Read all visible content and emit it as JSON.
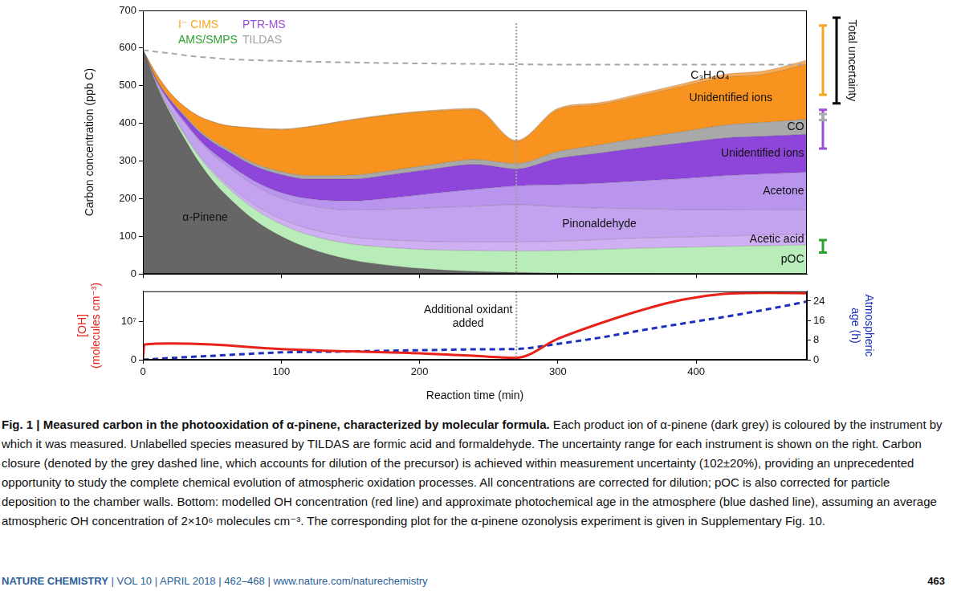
{
  "chart_data": [
    {
      "type": "area",
      "stacked": true,
      "y_label": "Carbon concentration (ppb C)",
      "x": [
        0,
        10,
        20,
        30,
        40,
        50,
        60,
        80,
        100,
        120,
        150,
        180,
        210,
        240,
        270,
        300,
        330,
        360,
        390,
        420,
        450,
        480
      ],
      "xlim": [
        0,
        480
      ],
      "xticks": [
        0,
        100,
        200,
        300,
        400
      ],
      "ylim": [
        0,
        700
      ],
      "yticks": [
        0,
        100,
        200,
        300,
        400,
        500,
        600,
        700
      ],
      "tick_labels": "y",
      "grid": false,
      "instruments": [
        {
          "name": "I⁻ CIMS",
          "color": "#f5a623"
        },
        {
          "name": "PTR-MS",
          "color": "#9b4ddb"
        },
        {
          "name": "AMS/SMPS",
          "color": "#2ca02c"
        },
        {
          "name": "TILDAS",
          "color": "#a0a0a0"
        }
      ],
      "series": [
        {
          "name": "α-Pinene",
          "color": "#666666",
          "values": [
            595,
            500,
            425,
            360,
            300,
            250,
            210,
            145,
            100,
            68,
            38,
            22,
            12,
            7,
            4,
            2,
            1,
            0.5,
            0,
            0,
            0,
            0
          ]
        },
        {
          "name": "pOC",
          "color": "#b8ecb8",
          "values": [
            0,
            2,
            6,
            10,
            15,
            20,
            24,
            29,
            32,
            36,
            42,
            48,
            52,
            55,
            57,
            60,
            64,
            68,
            71,
            73,
            75,
            77
          ]
        },
        {
          "name": "Acetic acid",
          "color": "#cfb0f2",
          "values": [
            0,
            1,
            2,
            4,
            5,
            7,
            8,
            11,
            14,
            16,
            18,
            20,
            22,
            23,
            24,
            25,
            26,
            27,
            27,
            28,
            28,
            28
          ]
        },
        {
          "name": "Pinonaldehyde",
          "color": "#c3a2f0",
          "values": [
            0,
            8,
            18,
            28,
            36,
            42,
            47,
            52,
            55,
            62,
            72,
            82,
            90,
            95,
            99,
            92,
            84,
            78,
            73,
            70,
            67,
            65
          ]
        },
        {
          "name": "Acetone",
          "color": "#b995ee",
          "values": [
            0,
            1,
            2,
            3,
            4,
            6,
            8,
            11,
            15,
            18,
            24,
            30,
            38,
            45,
            50,
            58,
            66,
            74,
            82,
            90,
            96,
            100
          ]
        },
        {
          "name": "Unidentified ions",
          "color": "#8e45d9",
          "values": [
            0,
            3,
            8,
            14,
            20,
            26,
            32,
            40,
            48,
            52,
            58,
            62,
            65,
            66,
            45,
            70,
            80,
            88,
            95,
            100,
            100,
            101
          ]
        },
        {
          "name": "CO",
          "color": "#a9a9a9",
          "values": [
            0,
            1,
            2,
            3,
            4,
            5,
            6,
            7,
            8,
            9,
            10,
            11,
            12,
            13,
            14,
            18,
            22,
            26,
            30,
            34,
            37,
            40
          ]
        },
        {
          "name": "Unidentified ions",
          "color": "#f7931e",
          "values": [
            0,
            14,
            17,
            23,
            36,
            49,
            60,
            93,
            112,
            130,
            146,
            148,
            141,
            133,
            59,
            111,
            107,
            112,
            120,
            127,
            128,
            147
          ]
        },
        {
          "name": "C₃H₄O₄",
          "color": "#f9ad5a",
          "values": [
            0,
            0,
            0,
            0,
            0,
            0,
            0,
            0,
            1,
            1,
            2,
            2,
            3,
            3,
            3,
            4,
            5,
            6,
            7,
            8,
            9,
            10
          ]
        },
        {
          "type": "line",
          "line_style": "dashed",
          "color": "#a8a8a8",
          "values": [
            595,
            590,
            586,
            581,
            577,
            574,
            571,
            568,
            566,
            564,
            562,
            560,
            559,
            558,
            557,
            556,
            556,
            556,
            556,
            556,
            556,
            556
          ]
        }
      ],
      "uncertainty": [
        {
          "color": "#f5a623",
          "low": 476,
          "high": 660
        },
        {
          "color": "#9b4ddb",
          "low": 333,
          "high": 436
        },
        {
          "color": "#a9a9a9",
          "low": 409,
          "high": 425
        },
        {
          "color": "#2ca02c",
          "low": 57,
          "high": 90
        },
        {
          "label": "Total uncertainty",
          "color": "#000000",
          "low": 453,
          "high": 681
        }
      ],
      "event": {
        "x": 270
      }
    },
    {
      "type": "line",
      "x_label": "Reaction time (min)",
      "y_label": [
        "[OH]",
        "(molecules cm⁻³)"
      ],
      "y2_label": [
        "Atmospheric",
        "age (h)"
      ],
      "x": [
        0,
        1,
        20,
        50,
        100,
        150,
        200,
        250,
        270,
        300,
        330,
        360,
        390,
        420,
        450,
        480
      ],
      "xlim": [
        0,
        480
      ],
      "xticks": [
        0,
        100,
        200,
        300,
        400
      ],
      "ylim": [
        0,
        18000000
      ],
      "yticks": [
        0,
        {
          "value": 10000000,
          "label": "10⁷"
        }
      ],
      "y2lim": [
        0,
        28
      ],
      "y2ticks": [
        0,
        8,
        16,
        24
      ],
      "grid": false,
      "series": [
        {
          "color": "#e8211a",
          "values": [
            0,
            4000000,
            4300000,
            4000000,
            2800000,
            2200000,
            1700000,
            800000,
            500000,
            5500000,
            9500000,
            13000000,
            15800000,
            17300000,
            17600000,
            17500000
          ]
        },
        {
          "color": "#1c2fbd",
          "line_style": "dashed",
          "axis": "y2",
          "values": [
            0,
            0.03,
            0.7,
            1.6,
            3.0,
            3.4,
            3.9,
            4.3,
            4.4,
            6.5,
            9.0,
            12.0,
            14.8,
            17.5,
            20.5,
            23.8
          ]
        }
      ],
      "event": {
        "x": 270,
        "text": [
          "Additional oxidant",
          "added"
        ]
      }
    }
  ],
  "caption": {
    "title": "Fig. 1 | Measured carbon in the photooxidation of α-pinene, characterized by molecular formula.",
    "text": "Each product ion of α-pinene (dark grey) is coloured by the instrument by which it was measured. Unlabelled species measured by TILDAS are formic acid and formaldehyde. The uncertainty range for each instrument is shown on the right. Carbon closure (denoted by the grey dashed line, which accounts for dilution of the precursor) is achieved within measurement uncertainty (102±20%), providing an unprecedented opportunity to study the complete chemical evolution of atmospheric oxidation processes. All concentrations are corrected for dilution; pOC is also corrected for particle deposition to the chamber walls. Bottom: modelled OH concentration (red line) and approximate photochemical age in the atmosphere (blue dashed line), assuming an average atmospheric OH concentration of 2×10⁶ molecules cm⁻³. The corresponding plot for the α-pinene ozonolysis experiment is given in Supplementary Fig. 10."
  },
  "footer": {
    "journal": "NATURE CHEMISTRY",
    "details": "| VOL 10 | APRIL 2018 | 462–468 | www.nature.com/naturechemistry",
    "page": "463"
  }
}
